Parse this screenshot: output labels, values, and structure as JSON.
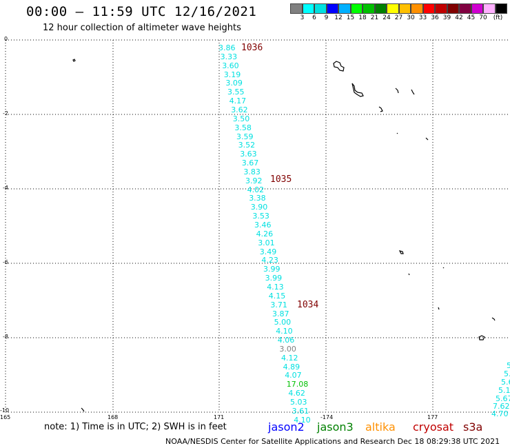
{
  "header": {
    "title": "00:00 – 11:59 UTC 12/16/2021",
    "subtitle": "12 hour collection of altimeter wave heights"
  },
  "legend": {
    "colors": [
      "#808080",
      "#00ffff",
      "#00e0e0",
      "#0000ff",
      "#00b0ff",
      "#00ff00",
      "#00c000",
      "#008000",
      "#ffff00",
      "#ffc000",
      "#ff9000",
      "#ff0000",
      "#c00000",
      "#800000",
      "#800040",
      "#d000d0",
      "#ffb0ff",
      "#000000"
    ],
    "labels": [
      "3",
      "6",
      "9",
      "12",
      "15",
      "18",
      "21",
      "24",
      "27",
      "30",
      "33",
      "36",
      "39",
      "42",
      "45",
      "70",
      "(ft)"
    ]
  },
  "axes": {
    "lat_labels": [
      "0",
      "-2",
      "-4",
      "-6",
      "-8",
      "-10"
    ],
    "lon_labels": [
      "165",
      "168",
      "171",
      "-174",
      "177"
    ]
  },
  "passes": [
    "1036",
    "1035",
    "1034"
  ],
  "track_values": [
    "3.86",
    "3.33",
    "3.60",
    "3.19",
    "3.09",
    "3.55",
    "4.17",
    "3.62",
    "3.50",
    "3.58",
    "3.59",
    "3.52",
    "3.63",
    "3.67",
    "3.83",
    "3.92",
    "4.02",
    "3.38",
    "3.90",
    "3.53",
    "3.46",
    "4.26",
    "3.01",
    "3.49",
    "4.23",
    "3.99",
    "3.99",
    "4.13",
    "4.15",
    "3.71",
    "3.87",
    "5.00",
    "4.10",
    "4.06",
    "3.00",
    "4.12",
    "4.89",
    "4.07",
    "17.08",
    "4.62",
    "5.03",
    "3.61",
    "4.10"
  ],
  "track_colors": [
    "#00e0e0",
    "#00e0e0",
    "#00e0e0",
    "#00e0e0",
    "#00e0e0",
    "#00e0e0",
    "#00e0e0",
    "#00e0e0",
    "#00e0e0",
    "#00e0e0",
    "#00e0e0",
    "#00e0e0",
    "#00e0e0",
    "#00e0e0",
    "#00e0e0",
    "#00e0e0",
    "#00e0e0",
    "#00e0e0",
    "#00e0e0",
    "#00e0e0",
    "#00e0e0",
    "#00e0e0",
    "#00e0e0",
    "#00e0e0",
    "#00e0e0",
    "#00e0e0",
    "#00e0e0",
    "#00e0e0",
    "#00e0e0",
    "#00e0e0",
    "#00e0e0",
    "#00e0e0",
    "#00e0e0",
    "#00e0e0",
    "#808080",
    "#00e0e0",
    "#00e0e0",
    "#00e0e0",
    "#00c000",
    "#00e0e0",
    "#00e0e0",
    "#00e0e0",
    "#00e0e0"
  ],
  "edge_values": [
    "5",
    "5.",
    "5.6",
    "5.1",
    "5.67",
    "7.62",
    "4.70"
  ],
  "note": "note: 1) Time is in UTC; 2) SWH is in feet",
  "satellites": [
    {
      "name": "jason2",
      "color": "#0000ff"
    },
    {
      "name": "jason3",
      "color": "#008000"
    },
    {
      "name": "altika",
      "color": "#ff9000"
    },
    {
      "name": "cryosat",
      "color": "#c00000"
    },
    {
      "name": "s3a",
      "color": "#800000"
    }
  ],
  "footer": "NOAA/NESDIS Center for Satellite Applications and Research   Dec 18 08:29:38 UTC 2021"
}
